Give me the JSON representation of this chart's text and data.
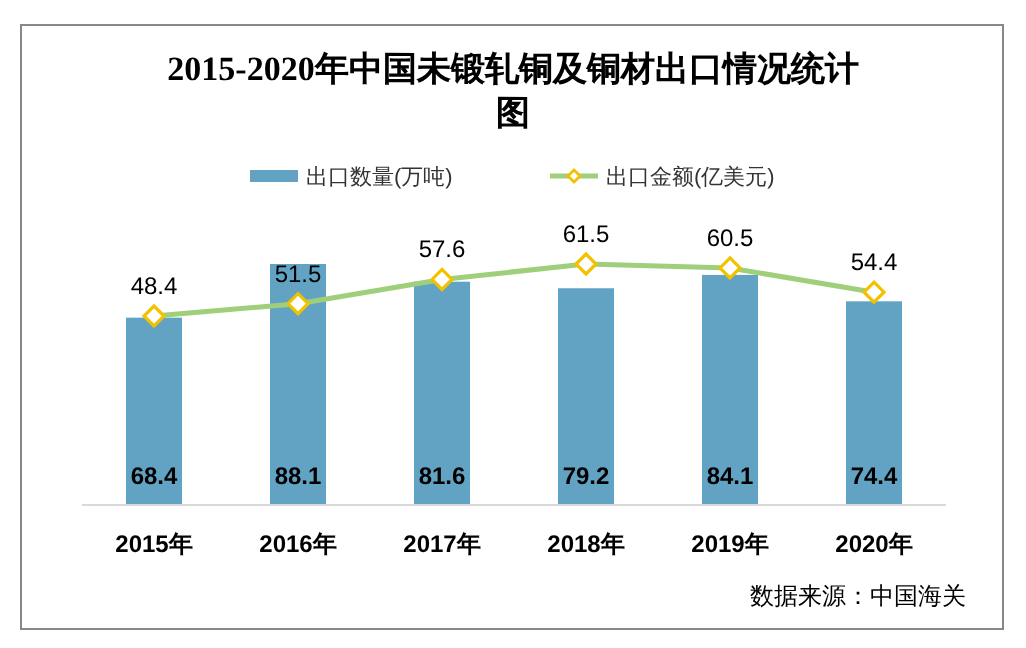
{
  "chart_data": {
    "type": "bar",
    "title": "2015-2020年中国未锻轧铜及铜材出口情况统计图",
    "categories": [
      "2015年",
      "2016年",
      "2017年",
      "2018年",
      "2019年",
      "2020年"
    ],
    "series": [
      {
        "name": "出口数量(万吨)",
        "color": "#62a3c4",
        "values": [
          68.4,
          88.1,
          81.6,
          79.2,
          84.1,
          74.4
        ]
      },
      {
        "name": "出口金额(亿美元)",
        "type": "line",
        "axis": "y2",
        "color": "#9fcf7a",
        "marker": "diamond",
        "values": [
          48.4,
          51.5,
          57.6,
          61.5,
          60.5,
          54.4
        ]
      }
    ],
    "data_labels": true,
    "legend": "top",
    "annotations": [
      "数据来源：中国海关"
    ]
  }
}
